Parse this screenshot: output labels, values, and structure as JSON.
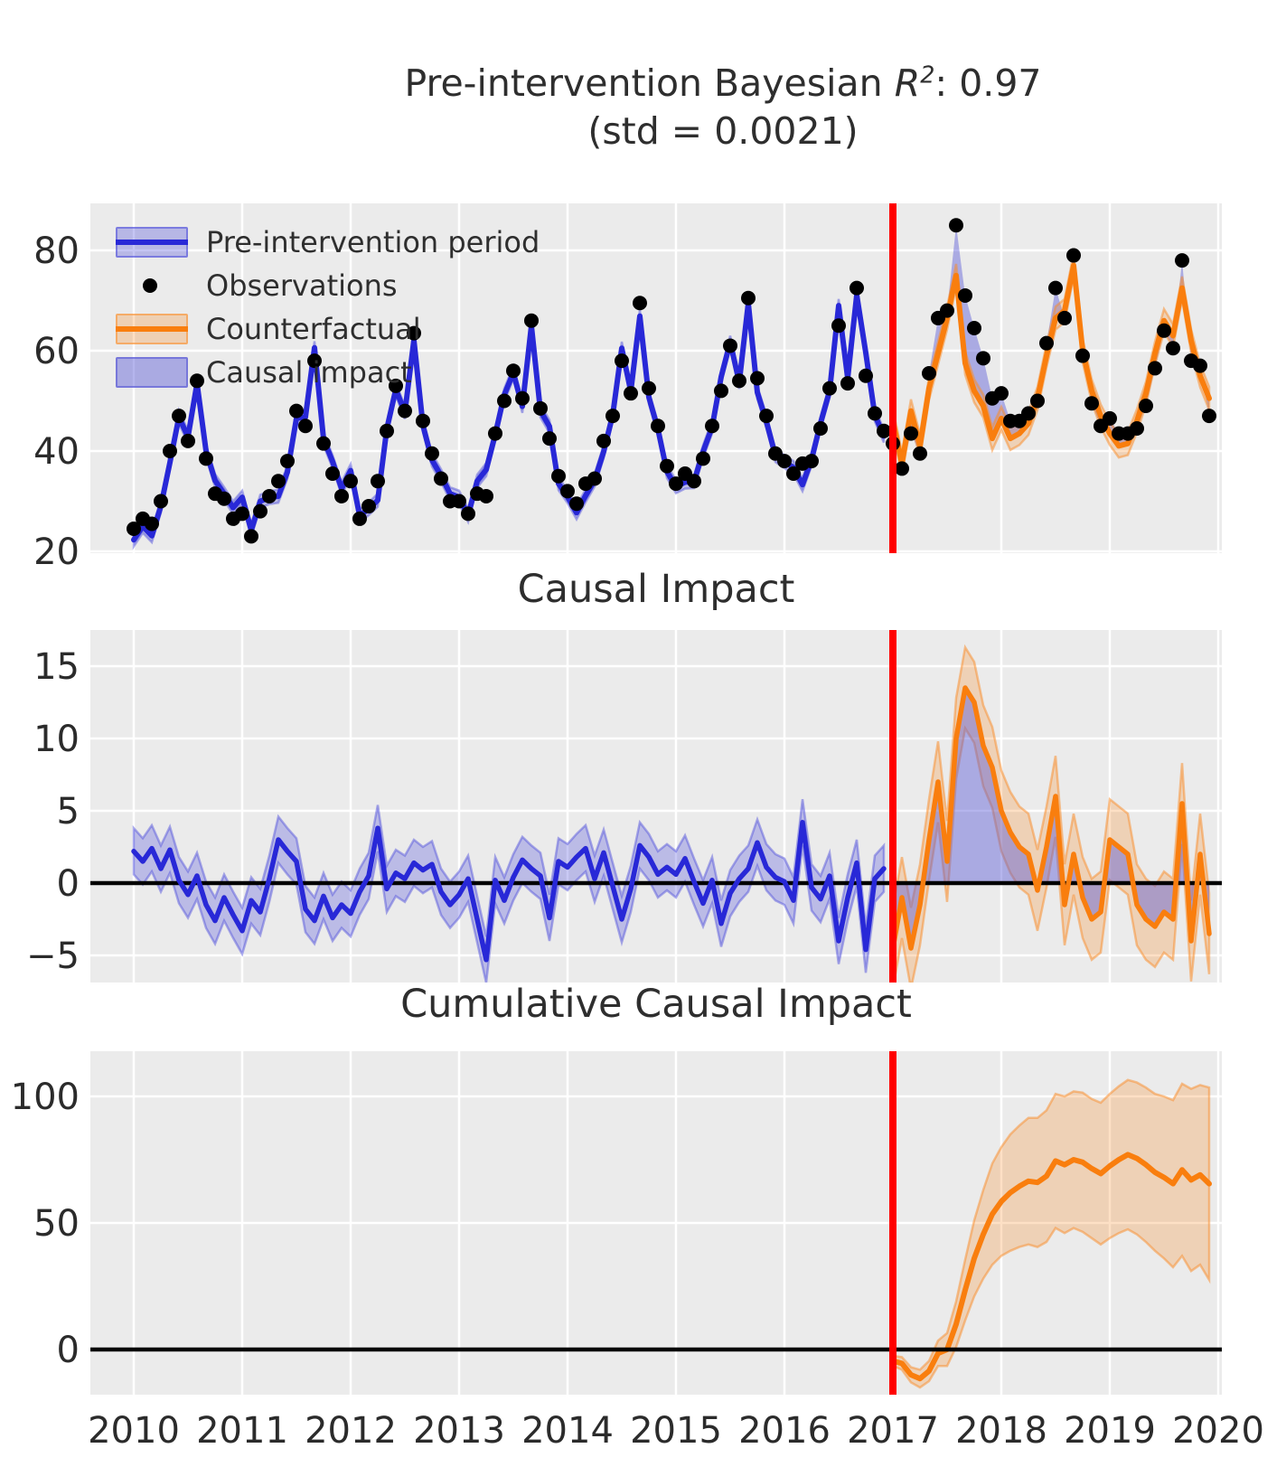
{
  "title": {
    "line1_prefix": "Pre-intervention Bayesian ",
    "r_symbol": "R",
    "r_exponent": "2",
    "line1_suffix": ": 0.97",
    "line2": "(std = 0.0021)"
  },
  "legend": {
    "items": [
      {
        "label": "Pre-intervention period",
        "marker": "band-line",
        "line_color": "#2828d7",
        "band_color": "rgba(75,75,219,0.32)",
        "edge_color": "rgba(75,75,219,0.55)"
      },
      {
        "label": "Observations",
        "marker": "dot",
        "color": "#000000"
      },
      {
        "label": "Counterfactual",
        "marker": "band-line",
        "line_color": "#f97e0e",
        "band_color": "rgba(249,140,40,0.28)",
        "edge_color": "rgba(249,140,40,0.55)"
      },
      {
        "label": "Causal impact",
        "marker": "patch",
        "color": "rgba(92,92,214,0.45)",
        "edge_color": "rgba(92,92,214,0.65)"
      }
    ]
  },
  "colors": {
    "plot_background": "#ebebeb",
    "grid": "#ffffff",
    "text": "#2b2b2b",
    "intervention_line": "#ff0000",
    "zero_line": "#000000",
    "observation_dot": "#000000",
    "pre_line": "#2828d7",
    "pre_band": "rgba(75,75,219,0.30)",
    "pre_band_edge": "rgba(75,75,219,0.45)",
    "counterfactual_line": "#f97e0e",
    "counterfactual_band": "rgba(249,140,40,0.27)",
    "counterfactual_band_edge": "rgba(249,140,40,0.5)",
    "causal_fill": "rgba(92,92,214,0.45)"
  },
  "axes": {
    "x_tick_years": [
      2010,
      2011,
      2012,
      2013,
      2014,
      2015,
      2016,
      2017,
      2018,
      2019,
      2020
    ],
    "x_tick_labels": [
      "2010",
      "2011",
      "2012",
      "2013",
      "2014",
      "2015",
      "2016",
      "2017",
      "2018",
      "2019",
      "2020"
    ]
  },
  "chart_data": [
    {
      "type": "line",
      "title": "",
      "x_start": 2010.0,
      "x_step_years": 0.083333,
      "intervention_x": 2017.0,
      "ylim": [
        19.6,
        89.3
      ],
      "yticks": [
        {
          "v": 20,
          "label": "20"
        },
        {
          "v": 40,
          "label": "40"
        },
        {
          "v": 60,
          "label": "60"
        },
        {
          "v": 80,
          "label": "80"
        }
      ],
      "series": [
        {
          "name": "Observations",
          "type": "scatter",
          "x_start": 2010.0,
          "values": [
            24.5,
            26.5,
            25.5,
            30.0,
            40.0,
            47.0,
            42.0,
            54.0,
            38.5,
            31.5,
            30.5,
            26.5,
            27.5,
            23.0,
            28.0,
            31.0,
            34.0,
            38.0,
            48.0,
            45.0,
            58.0,
            41.5,
            35.5,
            31.0,
            34.0,
            26.5,
            29.0,
            34.0,
            44.0,
            53.0,
            48.0,
            63.5,
            46.0,
            39.5,
            34.5,
            30.0,
            30.0,
            27.5,
            31.5,
            31.0,
            43.5,
            50.0,
            56.0,
            50.5,
            66.0,
            48.5,
            42.5,
            35.0,
            32.0,
            29.5,
            33.5,
            34.5,
            42.0,
            47.0,
            58.0,
            51.5,
            69.5,
            52.5,
            45.0,
            37.0,
            33.5,
            35.5,
            34.0,
            38.5,
            45.0,
            52.0,
            61.0,
            54.0,
            70.5,
            54.5,
            47.0,
            39.5,
            38.0,
            35.5,
            37.5,
            38.0,
            44.5,
            52.5,
            65.0,
            53.5,
            72.5,
            55.0,
            47.5,
            44.0,
            41.5,
            36.5,
            43.5,
            39.5,
            55.5,
            66.5,
            68.0,
            85.0,
            71.0,
            64.5,
            58.5,
            50.5,
            51.5,
            46.0,
            46.0,
            47.5,
            50.0,
            61.5,
            72.5,
            66.5,
            79.0,
            59.0,
            49.5,
            45.0,
            46.5,
            43.5,
            43.5,
            44.5,
            49.0,
            56.5,
            64.0,
            60.5,
            78.0,
            58.0,
            57.0,
            47.0
          ]
        },
        {
          "name": "Pre-intervention period",
          "type": "line+band",
          "x_start": 2010.0,
          "band_halfwidth": 1.3,
          "values": [
            22.3,
            25.0,
            23.1,
            29.0,
            37.7,
            46.8,
            42.8,
            53.5,
            40.0,
            34.1,
            31.5,
            28.7,
            30.8,
            24.2,
            30.0,
            30.7,
            31.0,
            35.8,
            46.5,
            46.8,
            60.6,
            42.4,
            37.9,
            32.5,
            36.1,
            27.1,
            28.5,
            30.2,
            44.4,
            52.3,
            47.7,
            62.1,
            45.1,
            38.2,
            35.1,
            31.5,
            30.8,
            27.2,
            34.0,
            36.3,
            43.3,
            51.2,
            55.6,
            48.9,
            65.0,
            48.0,
            44.9,
            33.5,
            30.9,
            27.7,
            31.1,
            34.2,
            39.9,
            47.2,
            60.5,
            51.9,
            66.9,
            50.7,
            44.4,
            35.9,
            32.9,
            33.8,
            33.9,
            39.9,
            44.8,
            54.8,
            61.7,
            53.7,
            69.5,
            51.7,
            45.9,
            39.1,
            37.9,
            36.7,
            33.3,
            38.3,
            45.6,
            52.0,
            69.0,
            54.5,
            71.1,
            59.6,
            47.2,
            43.0
          ]
        },
        {
          "name": "Counterfactual",
          "type": "line+band",
          "x_start": 2017.0,
          "band_halfwidth": 2.3,
          "values": [
            46.0,
            37.5,
            48.0,
            41.0,
            52.5,
            59.5,
            66.5,
            75.0,
            57.5,
            52.0,
            49.0,
            42.5,
            46.5,
            42.5,
            43.5,
            45.5,
            50.5,
            59.0,
            66.5,
            68.0,
            77.0,
            60.0,
            52.0,
            47.0,
            43.5,
            41.0,
            41.5,
            46.0,
            51.5,
            59.5,
            66.0,
            63.0,
            72.5,
            62.0,
            55.0,
            50.5
          ]
        },
        {
          "name": "Causal impact",
          "type": "fill-between",
          "x_start": 2017.0,
          "between": [
            "Observations",
            "Counterfactual"
          ]
        }
      ]
    },
    {
      "type": "line",
      "title": "Causal Impact",
      "x_start": 2010.0,
      "x_step_years": 0.083333,
      "intervention_x": 2017.0,
      "zero_line": true,
      "ylim": [
        -6.9,
        17.5
      ],
      "yticks": [
        {
          "v": 15,
          "label": "15"
        },
        {
          "v": 10,
          "label": "10"
        },
        {
          "v": 5,
          "label": "5"
        },
        {
          "v": 0,
          "label": "0"
        },
        {
          "v": -5,
          "label": "−5"
        }
      ],
      "series": [
        {
          "name": "pointwise-impact-pre",
          "type": "line+band",
          "x_start": 2010.0,
          "band_halfwidth": 1.6,
          "values": [
            2.2,
            1.5,
            2.4,
            1.0,
            2.3,
            0.2,
            -0.8,
            0.5,
            -1.5,
            -2.6,
            -1.0,
            -2.2,
            -3.3,
            -1.2,
            -2.0,
            0.3,
            3.0,
            2.2,
            1.5,
            -1.8,
            -2.6,
            -0.9,
            -2.4,
            -1.5,
            -2.1,
            -0.6,
            0.5,
            3.8,
            -0.4,
            0.7,
            0.3,
            1.4,
            0.9,
            1.3,
            -0.6,
            -1.5,
            -0.8,
            0.3,
            -2.5,
            -5.3,
            0.2,
            -1.2,
            0.4,
            1.6,
            1.0,
            0.5,
            -2.4,
            1.5,
            1.1,
            1.8,
            2.4,
            0.3,
            2.1,
            -0.2,
            -2.5,
            -0.4,
            2.6,
            1.8,
            0.6,
            1.1,
            0.6,
            1.7,
            0.1,
            -1.4,
            0.2,
            -2.8,
            -0.7,
            0.3,
            1.0,
            2.8,
            1.1,
            0.4,
            0.1,
            -1.2,
            4.2,
            -0.3,
            -1.1,
            0.5,
            -4.0,
            -1.0,
            1.4,
            -4.6,
            0.3,
            1.0
          ]
        },
        {
          "name": "pointwise-impact-post",
          "type": "line+band+fill0",
          "x_start": 2017.0,
          "band_halfwidth": 2.8,
          "values": [
            -4.5,
            -1.0,
            -4.5,
            -1.5,
            3.0,
            7.0,
            1.5,
            10.0,
            13.5,
            12.5,
            9.5,
            8.0,
            5.0,
            3.5,
            2.5,
            2.0,
            -0.5,
            2.5,
            6.0,
            -1.5,
            2.0,
            -1.0,
            -2.5,
            -2.0,
            3.0,
            2.5,
            2.0,
            -1.5,
            -2.5,
            -3.0,
            -2.0,
            -2.5,
            5.5,
            -4.0,
            2.0,
            -3.5
          ]
        }
      ]
    },
    {
      "type": "line",
      "title": "Cumulative Causal Impact",
      "x_start": 2017.0,
      "x_step_years": 0.083333,
      "intervention_x": 2017.0,
      "zero_line": true,
      "ylim": [
        -17,
        118
      ],
      "yticks": [
        {
          "v": 100,
          "label": "100"
        },
        {
          "v": 50,
          "label": "50"
        },
        {
          "v": 0,
          "label": "0"
        }
      ],
      "series": [
        {
          "name": "cumulative-impact",
          "type": "line+band",
          "x_start": 2017.0,
          "values": [
            -4.5,
            -5.5,
            -10.0,
            -11.5,
            -8.5,
            -1.5,
            0.0,
            10.0,
            23.5,
            36.0,
            45.5,
            53.5,
            58.5,
            62.0,
            64.5,
            66.5,
            66.0,
            68.5,
            74.5,
            73.0,
            75.0,
            74.0,
            71.5,
            69.5,
            72.5,
            75.0,
            77.0,
            75.5,
            73.0,
            70.0,
            68.0,
            65.5,
            71.0,
            67.0,
            69.0,
            65.5
          ],
          "band_halfwidths": [
            2.0,
            2.5,
            3.0,
            3.5,
            4.0,
            5.0,
            6.5,
            9.0,
            12.0,
            15.0,
            17.5,
            20.0,
            21.5,
            23.0,
            24.0,
            25.0,
            25.5,
            26.0,
            26.5,
            27.0,
            27.0,
            27.5,
            27.5,
            28.0,
            28.5,
            29.0,
            29.5,
            30.0,
            30.5,
            31.0,
            32.0,
            33.0,
            34.0,
            36.0,
            35.5,
            38.0
          ]
        }
      ]
    }
  ]
}
